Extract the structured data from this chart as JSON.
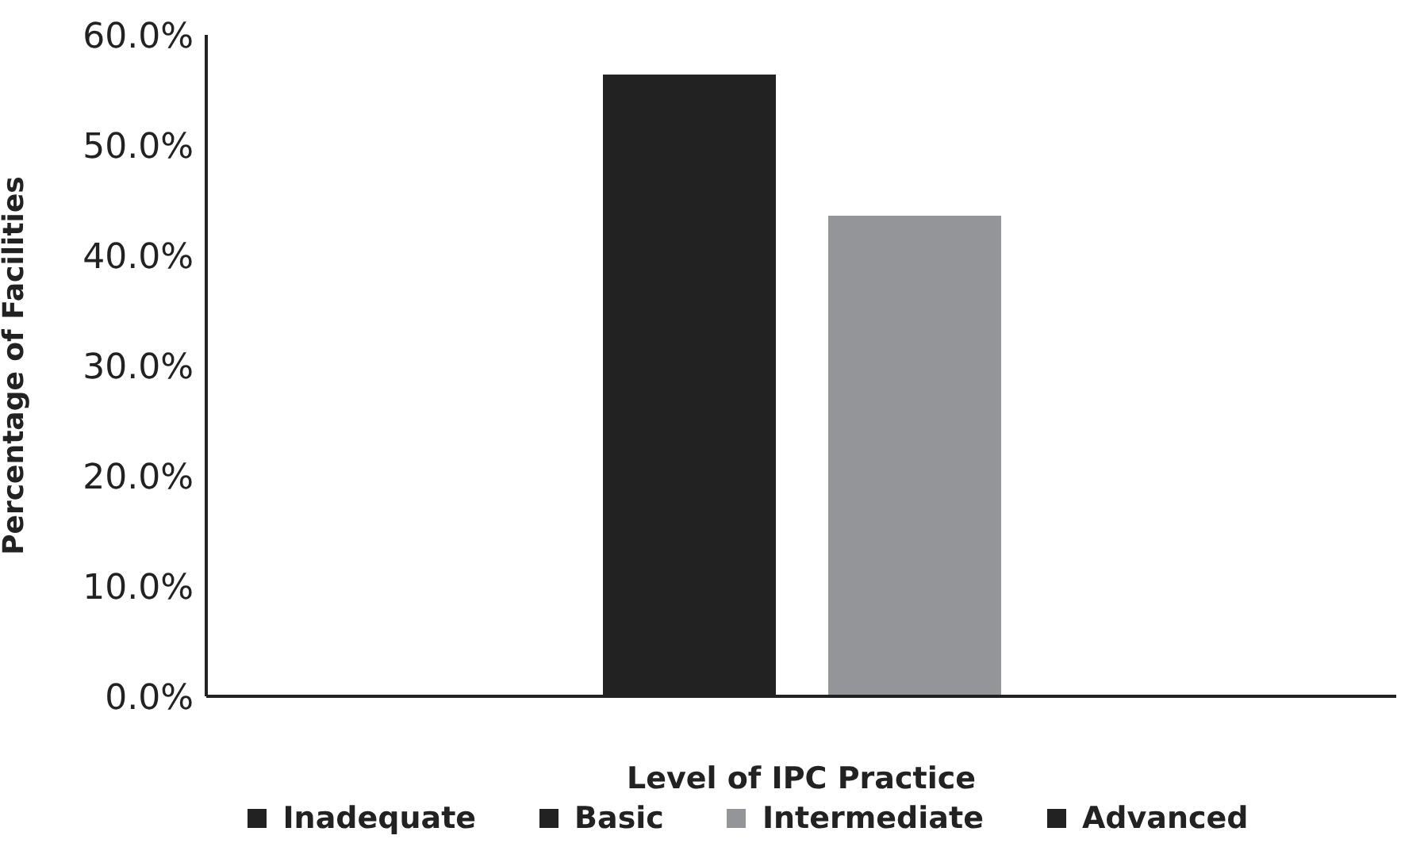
{
  "chart_data": {
    "type": "bar",
    "xlabel": "Level of IPC Practice",
    "ylabel": "Percentage of Facilities",
    "categories": [
      null
    ],
    "series": [
      {
        "name": "Inadequate",
        "color": "#222222",
        "values": [
          0
        ]
      },
      {
        "name": "Basic",
        "color": "#222222",
        "values": [
          56.4
        ]
      },
      {
        "name": "Intermediate",
        "color": "#939598",
        "values": [
          43.6
        ]
      },
      {
        "name": "Advanced",
        "color": "#222222",
        "values": [
          0
        ]
      }
    ],
    "ylim": [
      0,
      60
    ],
    "yticks": [
      {
        "value": 0,
        "label": "0.0%"
      },
      {
        "value": 10,
        "label": "10.0%"
      },
      {
        "value": 20,
        "label": "20.0%"
      },
      {
        "value": 30,
        "label": "30.0%"
      },
      {
        "value": 40,
        "label": "40.0%"
      },
      {
        "value": 50,
        "label": "50.0%"
      },
      {
        "value": 60,
        "label": "60.0%"
      }
    ],
    "grid": false,
    "legend": "bottom"
  }
}
